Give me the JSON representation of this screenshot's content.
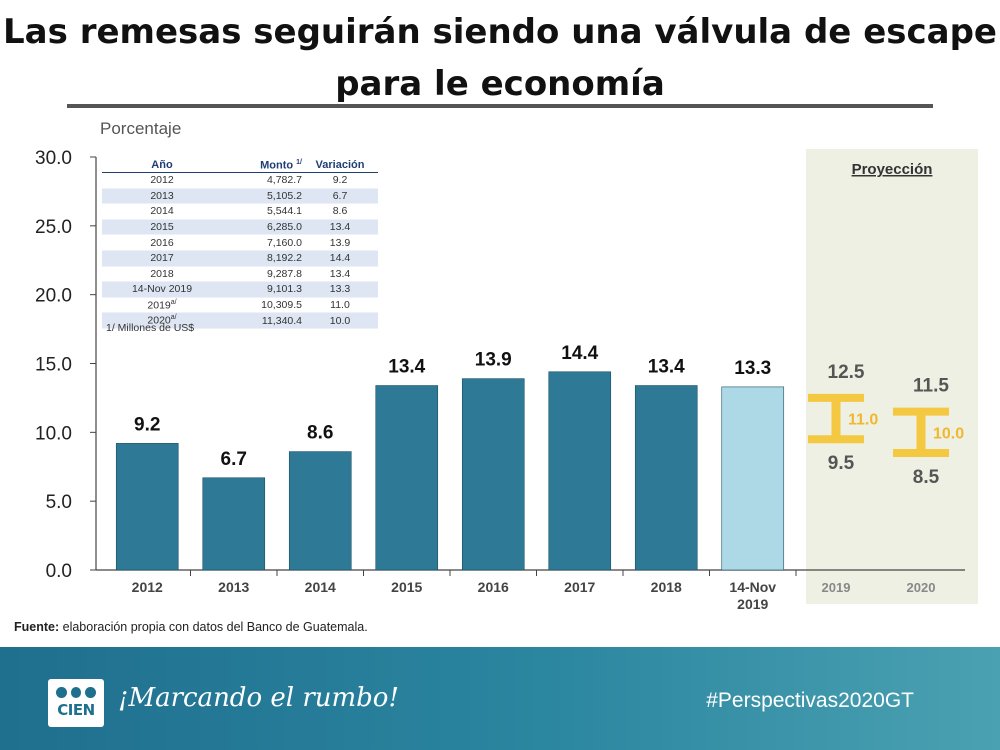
{
  "title": "Las remesas seguirán siendo una válvula de escape para le economía",
  "chart_data": {
    "type": "bar",
    "ylabel": "Porcentaje",
    "ylim": [
      0,
      30
    ],
    "yticks": [
      "0.0",
      "5.0",
      "10.0",
      "15.0",
      "20.0",
      "25.0",
      "30.0"
    ],
    "categories": [
      "2012",
      "2013",
      "2014",
      "2015",
      "2016",
      "2017",
      "2018",
      "14-Nov 2019"
    ],
    "values": [
      9.2,
      6.7,
      8.6,
      13.4,
      13.9,
      14.4,
      13.4,
      13.3
    ],
    "value_labels": [
      "9.2",
      "6.7",
      "8.6",
      "13.4",
      "13.9",
      "14.4",
      "13.4",
      "13.3"
    ],
    "colors": {
      "bar": "#2e7a96",
      "bar_latest": "#add8e6",
      "projection": "#f5c842",
      "projection_bg": "#eef0e4",
      "axis": "#444444"
    },
    "projection": {
      "label": "Proyección",
      "items": [
        {
          "year": "2019",
          "low": 9.5,
          "high": 12.5,
          "mid": 11.0,
          "low_label": "9.5",
          "high_label": "12.5",
          "mid_label": "11.0"
        },
        {
          "year": "2020",
          "low": 8.5,
          "high": 11.5,
          "mid": 10.0,
          "low_label": "8.5",
          "high_label": "11.5",
          "mid_label": "10.0"
        }
      ]
    },
    "grid": false
  },
  "table": {
    "headers": [
      "Año",
      "Monto",
      "Variación"
    ],
    "monto_sup": "1/",
    "rows": [
      {
        "year": "2012",
        "sup": "",
        "monto": "4,782.7",
        "var": "9.2"
      },
      {
        "year": "2013",
        "sup": "",
        "monto": "5,105.2",
        "var": "6.7"
      },
      {
        "year": "2014",
        "sup": "",
        "monto": "5,544.1",
        "var": "8.6"
      },
      {
        "year": "2015",
        "sup": "",
        "monto": "6,285.0",
        "var": "13.4"
      },
      {
        "year": "2016",
        "sup": "",
        "monto": "7,160.0",
        "var": "13.9"
      },
      {
        "year": "2017",
        "sup": "",
        "monto": "8,192.2",
        "var": "14.4"
      },
      {
        "year": "2018",
        "sup": "",
        "monto": "9,287.8",
        "var": "13.4"
      },
      {
        "year": "14-Nov 2019",
        "sup": "",
        "monto": "9,101.3",
        "var": "13.3"
      },
      {
        "year": "2019",
        "sup": "a/",
        "monto": "10,309.5",
        "var": "11.0"
      },
      {
        "year": "2020",
        "sup": "a/",
        "monto": "11,340.4",
        "var": "10.0"
      }
    ],
    "footnote": "1/ Millones de US$"
  },
  "source": {
    "prefix": "Fuente:",
    "text": " elaboración propia con datos del Banco de Guatemala."
  },
  "footer": {
    "logo_text": "CIEN",
    "slogan": "¡Marcando el rumbo!",
    "hashtag": "#Perspectivas2020GT"
  }
}
